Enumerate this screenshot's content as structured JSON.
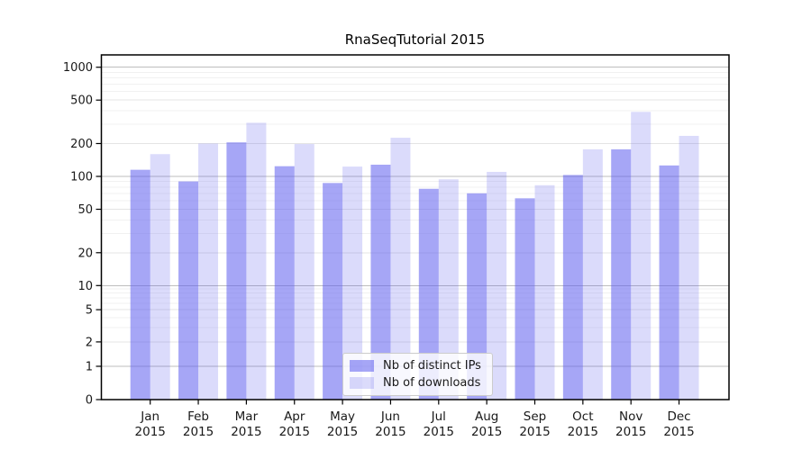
{
  "title": "RnaSeqTutorial 2015",
  "chart_data": {
    "type": "bar",
    "title": "RnaSeqTutorial 2015",
    "categories": [
      "Jan 2015",
      "Feb 2015",
      "Mar 2015",
      "Apr 2015",
      "May 2015",
      "Jun 2015",
      "Jul 2015",
      "Aug 2015",
      "Sep 2015",
      "Oct 2015",
      "Nov 2015",
      "Dec 2015"
    ],
    "series": [
      {
        "name": "Nb of distinct IPs",
        "color": "#5c5cee",
        "alpha": 0.55,
        "values": [
          115,
          90,
          205,
          124,
          87,
          128,
          77,
          70,
          63,
          103,
          177,
          126
        ]
      },
      {
        "name": "Nb of downloads",
        "color": "#5c5cee",
        "alpha": 0.22,
        "values": [
          160,
          200,
          310,
          198,
          123,
          226,
          94,
          110,
          83,
          177,
          390,
          235
        ]
      }
    ],
    "xlabel": "",
    "ylabel": "",
    "yscale": "log-with-zero",
    "y_ticks": [
      0,
      1,
      2,
      5,
      10,
      20,
      50,
      100,
      200,
      500,
      1000
    ],
    "ylim": [
      0,
      1300
    ],
    "grid": true,
    "legend_position": "lower-center-inside"
  },
  "colors": {
    "background": "#ffffff",
    "axis": "#000000",
    "text": "#191919",
    "grid_power10": "#bdbdbd",
    "grid_labeled": "#e4e4e4",
    "grid_minor": "#f1f1f1",
    "legend_border": "#cccccc"
  }
}
